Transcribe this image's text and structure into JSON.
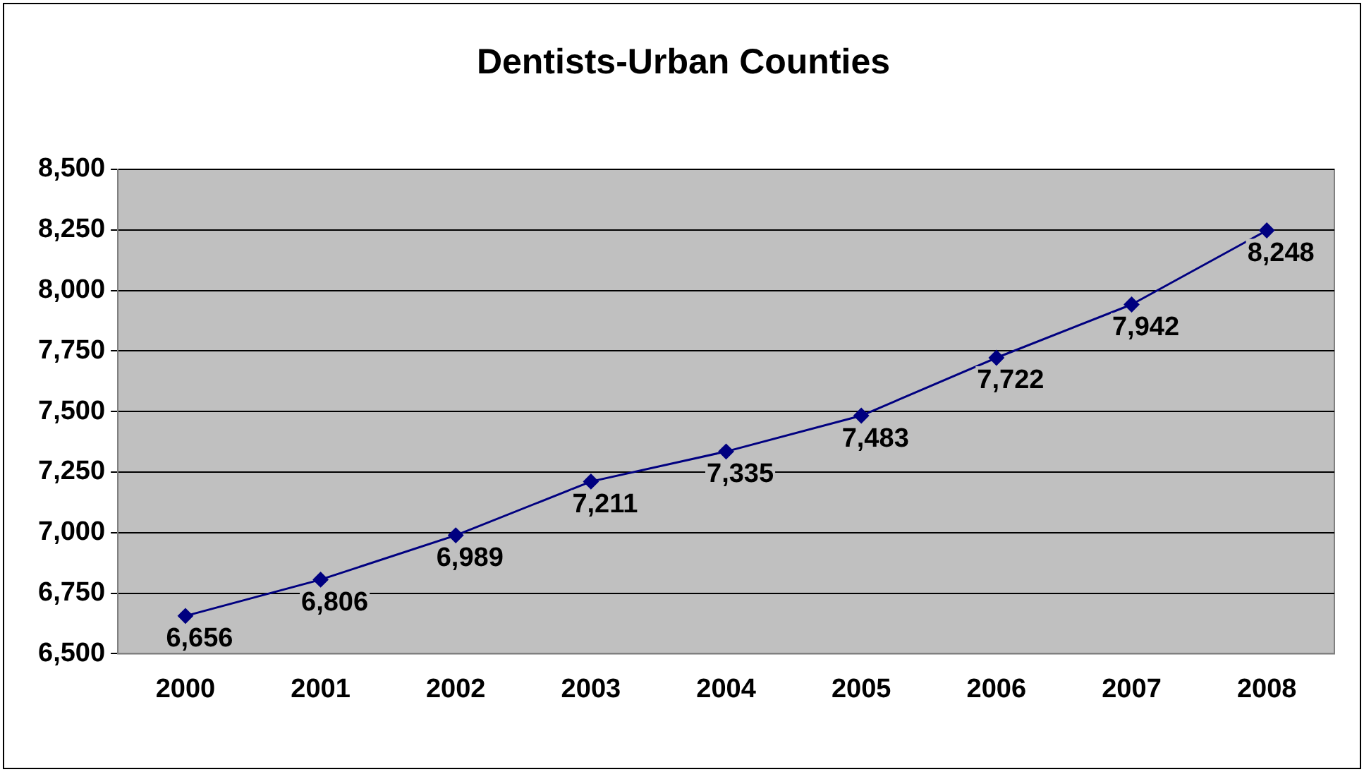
{
  "chart_data": {
    "type": "line",
    "title": "Dentists-Urban Counties",
    "categories": [
      "2000",
      "2001",
      "2002",
      "2003",
      "2004",
      "2005",
      "2006",
      "2007",
      "2008"
    ],
    "series": [
      {
        "color": "#000080",
        "values": [
          6656,
          6806,
          6989,
          7211,
          7335,
          7483,
          7722,
          7942,
          8248
        ],
        "value_labels": [
          "6,656",
          "6,806",
          "6,989",
          "7,211",
          "7,335",
          "7,483",
          "7,722",
          "7,942",
          "8,248"
        ]
      }
    ],
    "ylim": [
      6500,
      8500
    ],
    "yticks": [
      {
        "value": 6500,
        "label": "6,500"
      },
      {
        "value": 6750,
        "label": "6,750"
      },
      {
        "value": 7000,
        "label": "7,000"
      },
      {
        "value": 7250,
        "label": "7,250"
      },
      {
        "value": 7500,
        "label": "7,500"
      },
      {
        "value": 7750,
        "label": "7,750"
      },
      {
        "value": 8000,
        "label": "8,000"
      },
      {
        "value": 8250,
        "label": "8,250"
      },
      {
        "value": 8500,
        "label": "8,500"
      }
    ],
    "grid": "y",
    "legend": false,
    "marker": "diamond",
    "line_style": "solid"
  }
}
